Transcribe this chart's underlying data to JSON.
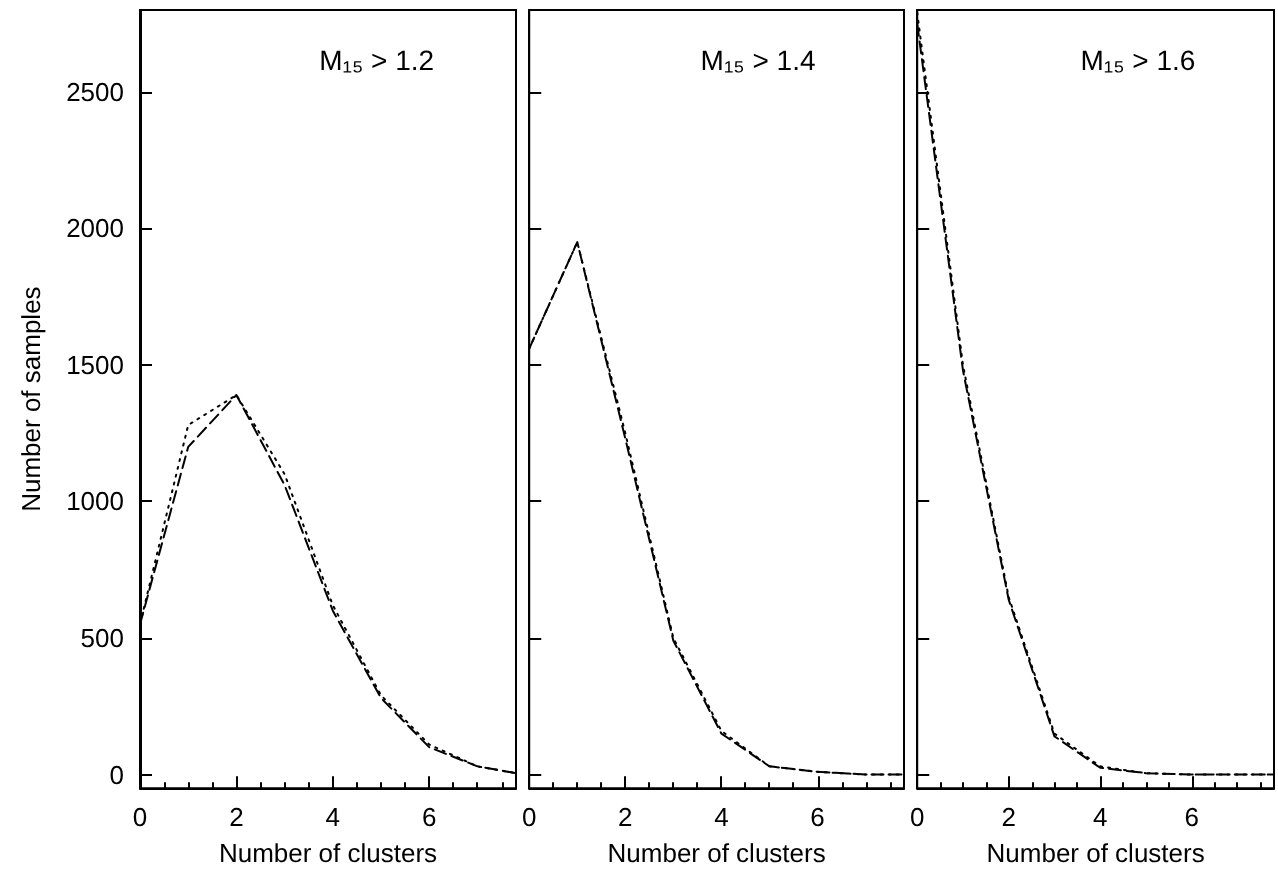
{
  "chart_data": [
    {
      "type": "line",
      "title": "M₁₅ > 1.2",
      "xlabel": "Number of clusters",
      "ylabel": "Number of samples",
      "x": [
        0,
        1,
        2,
        3,
        4,
        5,
        6,
        7,
        7.8
      ],
      "series": [
        {
          "color": "#000000",
          "line_style": "dotted",
          "values": [
            550,
            1280,
            1390,
            1100,
            620,
            290,
            110,
            30,
            5
          ]
        },
        {
          "color": "#000000",
          "line_style": "dashed",
          "values": [
            550,
            1200,
            1390,
            1060,
            600,
            280,
            100,
            30,
            5
          ]
        }
      ],
      "xlim": [
        0,
        7.8
      ],
      "xticks": [
        0,
        2,
        4,
        6
      ],
      "ylim": [
        -50,
        2800
      ],
      "yticks": [
        0,
        500,
        1000,
        1500,
        2000,
        2500
      ]
    },
    {
      "type": "line",
      "title": "M₁₅ > 1.4",
      "xlabel": "Number of clusters",
      "x": [
        0,
        1,
        2,
        3,
        4,
        5,
        6,
        7,
        7.8
      ],
      "series": [
        {
          "color": "#000000",
          "line_style": "dotted",
          "values": [
            1560,
            1950,
            1250,
            500,
            160,
            30,
            10,
            0,
            0
          ]
        },
        {
          "color": "#000000",
          "line_style": "dashed",
          "values": [
            1560,
            1950,
            1230,
            490,
            150,
            30,
            10,
            0,
            0
          ]
        }
      ],
      "xlim": [
        0,
        7.8
      ],
      "xticks": [
        0,
        2,
        4,
        6
      ],
      "ylim": [
        -50,
        2800
      ],
      "yticks": [
        0,
        500,
        1000,
        1500,
        2000,
        2500
      ],
      "tick_labels": "x"
    },
    {
      "type": "line",
      "title": "M₁₅ > 1.6",
      "xlabel": "Number of clusters",
      "x": [
        0,
        1,
        2,
        3,
        4,
        5,
        6,
        7,
        7.8
      ],
      "series": [
        {
          "color": "#000000",
          "line_style": "dotted",
          "values": [
            2790,
            1500,
            650,
            150,
            30,
            5,
            0,
            0,
            0
          ]
        },
        {
          "color": "#000000",
          "line_style": "dashed",
          "values": [
            2750,
            1480,
            640,
            140,
            25,
            5,
            0,
            0,
            0
          ]
        }
      ],
      "xlim": [
        0,
        7.8
      ],
      "xticks": [
        0,
        2,
        4,
        6
      ],
      "ylim": [
        -50,
        2800
      ],
      "yticks": [
        0,
        500,
        1000,
        1500,
        2000,
        2500
      ],
      "tick_labels": "x"
    }
  ]
}
